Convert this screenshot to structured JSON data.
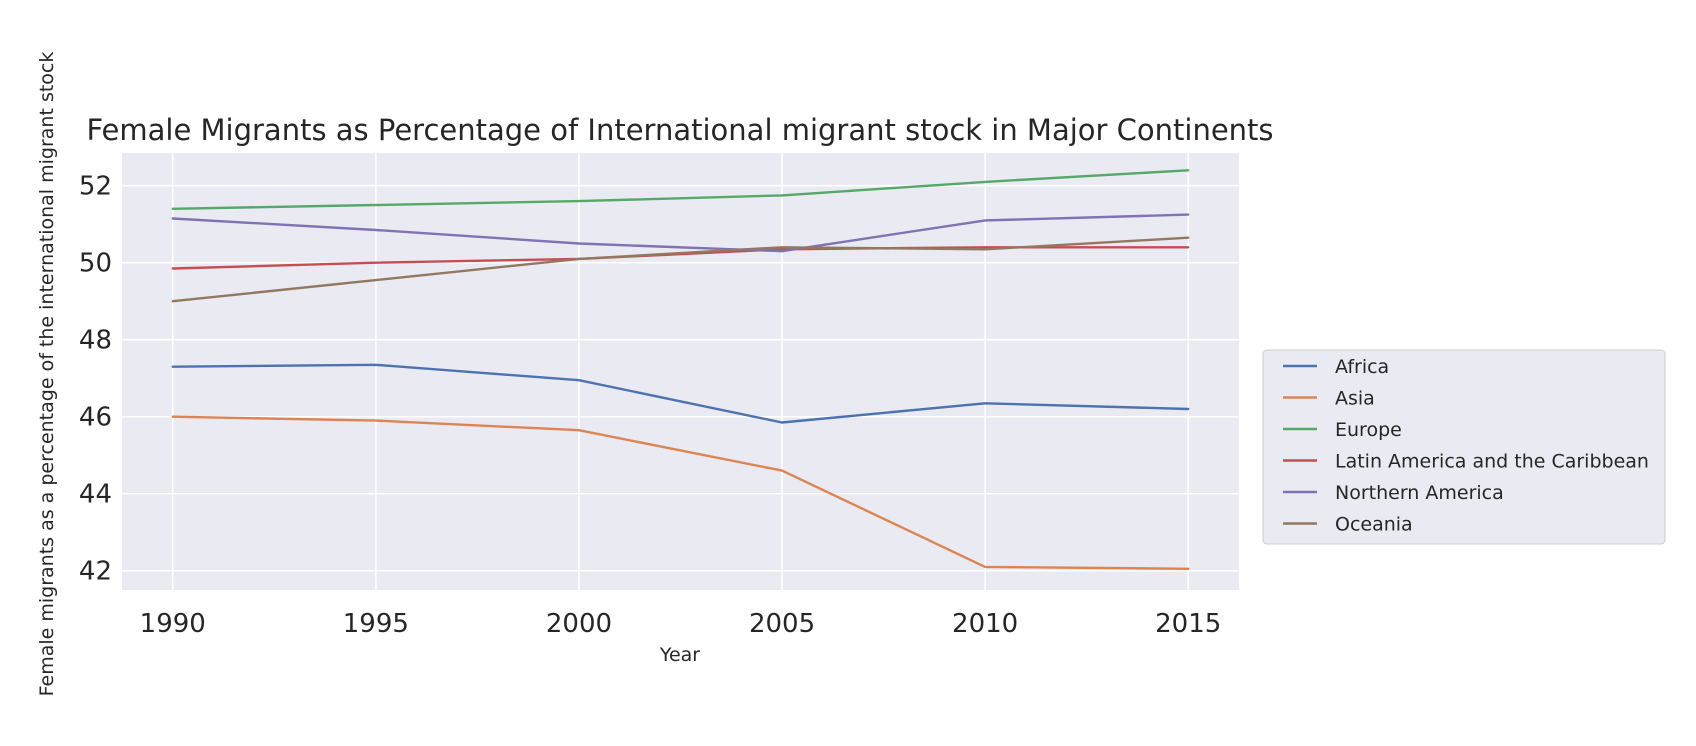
{
  "chart_data": {
    "type": "line",
    "title": "Female Migrants as Percentage of International migrant stock in Major Continents",
    "xlabel": "Year",
    "ylabel": "Female migrants as a percentage of the international migrant stock",
    "x": [
      1990,
      1995,
      2000,
      2005,
      2010,
      2015
    ],
    "x_ticks": [
      "1990",
      "1995",
      "2000",
      "2005",
      "2010",
      "2015"
    ],
    "y_ticks": [
      "42",
      "44",
      "46",
      "48",
      "50",
      "52"
    ],
    "xlim": [
      1988.75,
      2016.25
    ],
    "ylim": [
      41.5,
      52.85
    ],
    "grid": true,
    "legend_position": "center-right outside",
    "series": [
      {
        "name": "Africa",
        "color": "#4c72b0",
        "values": [
          47.3,
          47.35,
          46.95,
          45.85,
          46.35,
          46.2
        ]
      },
      {
        "name": "Asia",
        "color": "#dd8452",
        "values": [
          46.0,
          45.9,
          45.65,
          44.6,
          42.1,
          42.05
        ]
      },
      {
        "name": "Europe",
        "color": "#55a868",
        "values": [
          51.4,
          51.5,
          51.6,
          51.75,
          52.1,
          52.4
        ]
      },
      {
        "name": "Latin America and the Caribbean",
        "color": "#c44e52",
        "values": [
          49.85,
          50.0,
          50.1,
          50.35,
          50.4,
          50.4
        ]
      },
      {
        "name": "Northern America",
        "color": "#8172b3",
        "values": [
          51.15,
          50.85,
          50.5,
          50.3,
          51.1,
          51.25
        ]
      },
      {
        "name": "Oceania",
        "color": "#937860",
        "values": [
          49.0,
          49.55,
          50.1,
          50.4,
          50.35,
          50.65
        ]
      }
    ]
  },
  "colors": {
    "plot_background": "#eaeaf2",
    "grid": "#ffffff",
    "text": "#262626"
  }
}
